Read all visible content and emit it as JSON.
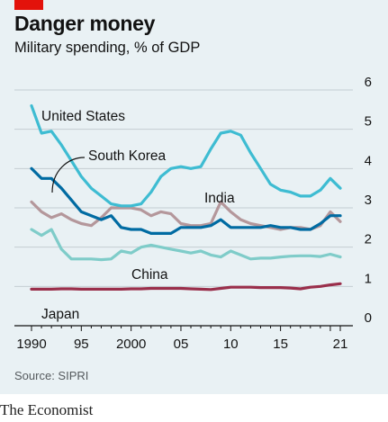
{
  "header": {
    "title": "Danger money",
    "subtitle": "Military spending, % of GDP"
  },
  "footer": {
    "source": "Source: SIPRI",
    "brand": "The Economist"
  },
  "colors": {
    "panel_bg": "#e9f1f4",
    "brand_red": "#e3120b",
    "gridline": "#c4cdd2",
    "united_states": "#3ebcd2",
    "south_korea": "#006ba2",
    "india": "#b4979b",
    "china": "#7fccc9",
    "japan": "#9a2f4b"
  },
  "chart_data": {
    "type": "line",
    "title": "Danger money",
    "subtitle": "Military spending, % of GDP",
    "x_tick_labels": [
      "1990",
      "95",
      "2000",
      "05",
      "10",
      "15",
      "21"
    ],
    "x_tick_values": [
      1990,
      1995,
      2000,
      2005,
      2010,
      2015,
      2021
    ],
    "y_ticks": [
      0,
      1,
      2,
      3,
      4,
      5,
      6
    ],
    "ylim": [
      0,
      6
    ],
    "xlim": [
      1990,
      2021
    ],
    "y_axis_position": "right",
    "grid": true,
    "x": [
      1990,
      1991,
      1992,
      1993,
      1994,
      1995,
      1996,
      1997,
      1998,
      1999,
      2000,
      2001,
      2002,
      2003,
      2004,
      2005,
      2006,
      2007,
      2008,
      2009,
      2010,
      2011,
      2012,
      2013,
      2014,
      2015,
      2016,
      2017,
      2018,
      2019,
      2020,
      2021
    ],
    "series": [
      {
        "name": "United States",
        "color_key": "united_states",
        "values": [
          5.6,
          4.9,
          4.95,
          4.6,
          4.2,
          3.8,
          3.5,
          3.3,
          3.1,
          3.05,
          3.05,
          3.1,
          3.4,
          3.8,
          4.0,
          4.05,
          4.0,
          4.05,
          4.5,
          4.9,
          4.95,
          4.85,
          4.4,
          4.0,
          3.6,
          3.45,
          3.4,
          3.3,
          3.3,
          3.45,
          3.75,
          3.5
        ]
      },
      {
        "name": "South Korea",
        "color_key": "south_korea",
        "values": [
          4.0,
          3.75,
          3.75,
          3.5,
          3.2,
          2.9,
          2.8,
          2.7,
          2.8,
          2.5,
          2.45,
          2.45,
          2.35,
          2.35,
          2.35,
          2.5,
          2.5,
          2.5,
          2.55,
          2.7,
          2.5,
          2.5,
          2.5,
          2.5,
          2.55,
          2.5,
          2.5,
          2.45,
          2.45,
          2.6,
          2.8,
          2.8
        ]
      },
      {
        "name": "India",
        "color_key": "india",
        "values": [
          3.15,
          2.9,
          2.75,
          2.85,
          2.7,
          2.6,
          2.55,
          2.75,
          3.0,
          3.0,
          3.0,
          2.95,
          2.8,
          2.9,
          2.85,
          2.6,
          2.55,
          2.55,
          2.6,
          3.15,
          2.9,
          2.7,
          2.6,
          2.55,
          2.5,
          2.45,
          2.5,
          2.5,
          2.45,
          2.55,
          2.9,
          2.65
        ]
      },
      {
        "name": "China",
        "color_key": "china",
        "values": [
          2.45,
          2.3,
          2.45,
          1.95,
          1.7,
          1.7,
          1.7,
          1.68,
          1.7,
          1.9,
          1.85,
          2.0,
          2.05,
          2.0,
          1.95,
          1.9,
          1.85,
          1.9,
          1.8,
          1.75,
          1.9,
          1.8,
          1.7,
          1.72,
          1.72,
          1.75,
          1.77,
          1.78,
          1.78,
          1.76,
          1.82,
          1.75
        ]
      },
      {
        "name": "Japan",
        "color_key": "japan",
        "values": [
          0.93,
          0.93,
          0.93,
          0.94,
          0.94,
          0.93,
          0.93,
          0.93,
          0.93,
          0.93,
          0.94,
          0.94,
          0.95,
          0.95,
          0.95,
          0.95,
          0.94,
          0.93,
          0.92,
          0.95,
          0.98,
          0.98,
          0.98,
          0.97,
          0.97,
          0.97,
          0.96,
          0.94,
          0.98,
          1.0,
          1.04,
          1.07
        ]
      }
    ],
    "series_labels": [
      "United States",
      "South Korea",
      "India",
      "China",
      "Japan"
    ]
  }
}
